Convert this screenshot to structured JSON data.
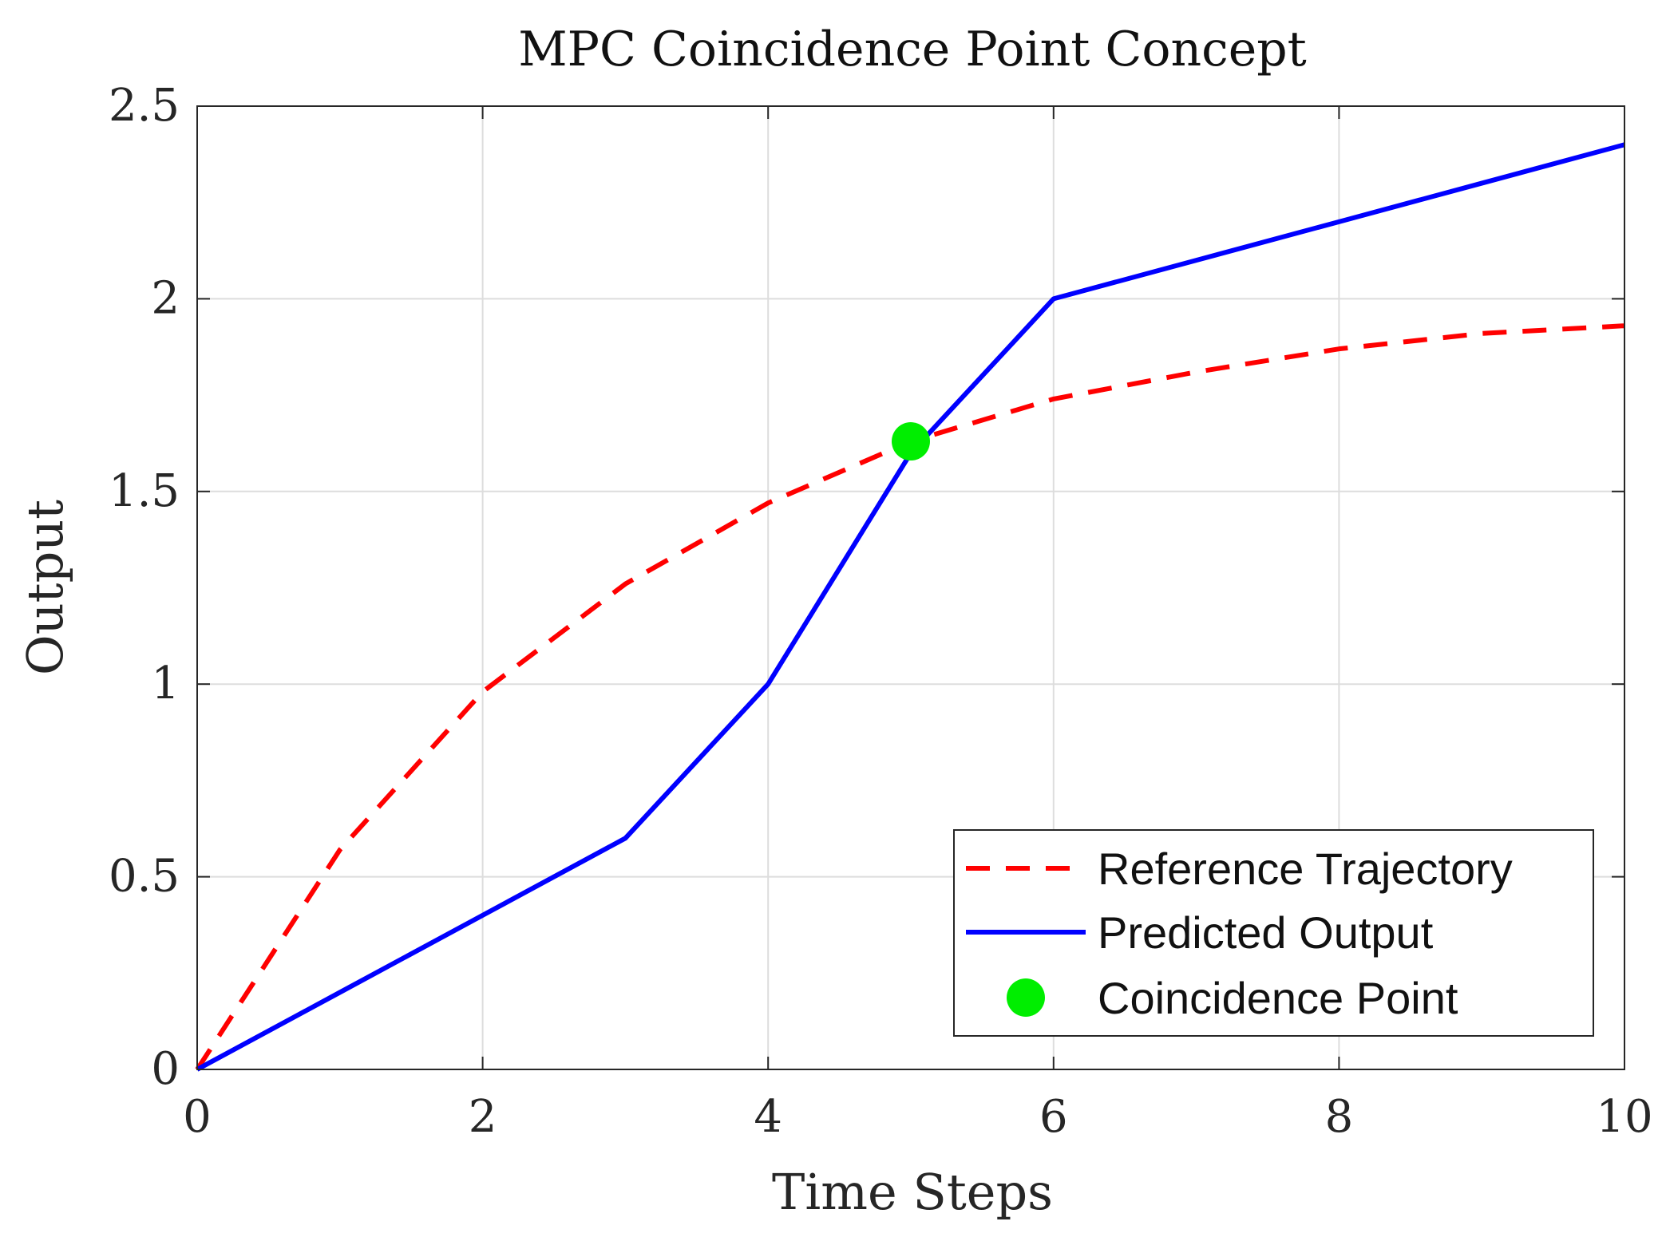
{
  "chart_data": {
    "type": "line",
    "title": "MPC Coincidence Point Concept",
    "xlabel": "Time Steps",
    "ylabel": "Output",
    "xlim": [
      0,
      10
    ],
    "ylim": [
      0,
      2.5
    ],
    "xticks": [
      0,
      2,
      4,
      6,
      8,
      10
    ],
    "xtick_labels": [
      "0",
      "2",
      "4",
      "6",
      "8",
      "10"
    ],
    "yticks": [
      0,
      0.5,
      1,
      1.5,
      2,
      2.5
    ],
    "ytick_labels": [
      "0",
      "0.5",
      "1",
      "1.5",
      "2",
      "2.5"
    ],
    "grid": true,
    "legend_position": "bottom-right",
    "series": [
      {
        "name": "Reference Trajectory",
        "style": "dashed",
        "color": "#ff0000",
        "x": [
          0,
          1,
          2,
          3,
          4,
          5,
          6,
          7,
          8,
          9,
          10
        ],
        "y": [
          0,
          0.57,
          0.98,
          1.26,
          1.47,
          1.63,
          1.74,
          1.81,
          1.87,
          1.91,
          1.93
        ]
      },
      {
        "name": "Predicted Output",
        "style": "solid",
        "color": "#0000ff",
        "x": [
          0,
          1,
          2,
          3,
          4,
          5,
          6,
          7,
          8,
          9,
          10
        ],
        "y": [
          0,
          0.2,
          0.4,
          0.6,
          1.0,
          1.6,
          2.0,
          2.1,
          2.2,
          2.3,
          2.4
        ]
      },
      {
        "name": "Coincidence Point",
        "style": "marker",
        "color": "#00ee00",
        "x": [
          5
        ],
        "y": [
          1.63
        ]
      }
    ]
  }
}
